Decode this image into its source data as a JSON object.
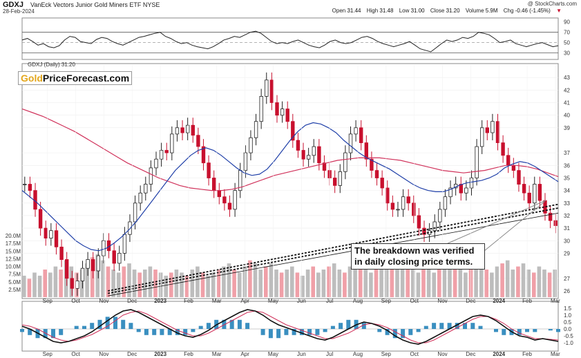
{
  "header": {
    "symbol": "GDXJ",
    "name": "VanEck Vectors Junior Gold Miners ETF  NYSE",
    "date": "28-Feb-2024",
    "copyright": "@ StockCharts.com",
    "open_label": "Open",
    "open": "31.44",
    "high_label": "High",
    "high": "31.48",
    "low_label": "Low",
    "low": "31.00",
    "close_label": "Close",
    "close": "31.20",
    "volume_label": "Volume",
    "volume": "5.9M",
    "chg_label": "Chg",
    "chg": "-0.46 (-1.45%)",
    "chg_marker": "▼"
  },
  "price_title": "GDXJ (Daily) 31.20",
  "logo": {
    "gold": "Gold",
    "rest": "PriceForecast.com"
  },
  "annotation": {
    "line1": "The breakdown was verified",
    "line2": "in daily closing price terms."
  },
  "colors": {
    "up": "#222222",
    "down": "#c8102e",
    "ma50": "#1f3fa8",
    "ma200": "#d0315a",
    "volume": "#bdbdbd",
    "volume_down": "#f0a0a8",
    "macd_hist": "#3a8fc0",
    "rsi": "#222222"
  },
  "chart_data": [
    {
      "type": "line",
      "name": "RSI",
      "y_ticks": [
        90,
        70,
        50,
        30
      ],
      "ylim": [
        20,
        95
      ],
      "values": [
        55,
        58,
        52,
        45,
        48,
        42,
        40,
        44,
        55,
        62,
        60,
        52,
        50,
        48,
        56,
        60,
        58,
        52,
        48,
        45,
        50,
        55,
        60,
        62,
        65,
        68,
        70,
        62,
        58,
        52,
        48,
        50,
        45,
        42,
        40,
        38,
        42,
        48,
        55,
        58,
        62,
        60,
        65,
        70,
        72,
        68,
        60,
        52,
        48,
        50,
        48,
        52,
        55,
        50,
        45,
        42,
        40,
        45,
        52,
        55,
        50,
        48,
        50,
        55,
        60,
        62,
        58,
        52,
        48,
        45,
        42,
        45,
        48,
        52,
        45,
        38,
        35,
        32,
        40,
        48,
        55,
        52,
        55,
        60,
        58,
        62,
        70,
        68,
        65,
        58,
        50,
        52,
        55,
        48,
        45,
        42,
        45,
        48,
        50,
        46,
        42,
        44
      ]
    },
    {
      "type": "line",
      "name": "GDXJ (Daily)",
      "x_ticks": [
        "Sep",
        "Oct",
        "Nov",
        "Dec",
        "2023",
        "Feb",
        "Mar",
        "Apr",
        "May",
        "Jun",
        "Jul",
        "Aug",
        "Sep",
        "Oct",
        "Nov",
        "Dec",
        "2024",
        "Feb",
        "Mar"
      ],
      "y_ticks": [
        43,
        42,
        41,
        40,
        39,
        37,
        36,
        35,
        34,
        33,
        32,
        31,
        30,
        29,
        27,
        26
      ],
      "ylim": [
        25.5,
        44
      ],
      "closes": [
        34.5,
        34.0,
        32.5,
        31.0,
        30.2,
        30.8,
        29.5,
        28.5,
        27.0,
        26.2,
        26.8,
        27.8,
        28.5,
        27.6,
        28.8,
        30.0,
        29.2,
        28.2,
        29.0,
        30.5,
        31.5,
        33.0,
        33.8,
        34.5,
        35.8,
        36.5,
        37.2,
        37.0,
        38.5,
        39.0,
        38.6,
        39.2,
        38.4,
        37.5,
        36.2,
        35.0,
        34.0,
        33.5,
        33.0,
        32.5,
        34.0,
        35.6,
        37.0,
        38.2,
        39.5,
        41.5,
        42.8,
        41.0,
        40.0,
        40.5,
        39.5,
        38.0,
        37.2,
        36.5,
        36.8,
        37.5,
        36.2,
        35.6,
        35.0,
        34.4,
        35.5,
        37.0,
        38.5,
        39.0,
        37.8,
        36.5,
        35.6,
        35.0,
        34.2,
        33.0,
        32.5,
        32.5,
        33.5,
        33.0,
        32.0,
        31.0,
        30.5,
        30.8,
        31.5,
        32.5,
        33.5,
        34.2,
        34.5,
        33.8,
        34.2,
        35.0,
        37.5,
        39.0,
        38.6,
        39.5,
        37.8,
        36.8,
        36.0,
        35.6,
        34.5,
        33.8,
        33.0,
        34.5,
        33.2,
        32.2,
        31.6,
        31.2
      ],
      "ma50": [
        34.0,
        33.5,
        33.0,
        32.4,
        31.8,
        31.2,
        30.6,
        30.0,
        29.6,
        29.3,
        29.2,
        29.4,
        29.8,
        30.3,
        30.9,
        31.6,
        32.4,
        33.2,
        34.0,
        34.8,
        35.6,
        36.2,
        36.8,
        37.2,
        37.4,
        37.2,
        36.8,
        36.3,
        35.8,
        35.4,
        35.2,
        35.3,
        35.7,
        36.4,
        37.2,
        38.0,
        38.7,
        39.2,
        39.4,
        39.3,
        39.0,
        38.6,
        38.0,
        37.5,
        37.0,
        36.6,
        36.3,
        36.0,
        35.7,
        35.3,
        34.9,
        34.5,
        34.2,
        34.0,
        33.9,
        33.9,
        34.1,
        34.4,
        34.6,
        34.7,
        34.8,
        35.0,
        35.3,
        35.8,
        36.1,
        36.3,
        36.2,
        35.9,
        35.5,
        35.1,
        34.7
      ],
      "ma200": [
        40.5,
        40.2,
        39.9,
        39.5,
        39.1,
        38.7,
        38.2,
        37.7,
        37.2,
        36.7,
        36.2,
        35.8,
        35.4,
        35.0,
        34.7,
        34.4,
        34.2,
        34.1,
        34.0,
        34.0,
        34.1,
        34.3,
        34.6,
        34.9,
        35.2,
        35.4,
        35.6,
        35.8,
        36.0,
        36.2,
        36.4,
        36.5,
        36.6,
        36.6,
        36.6,
        36.5,
        36.4,
        36.2,
        36.0,
        35.8,
        35.6,
        35.5,
        35.4,
        35.5,
        35.6,
        35.8,
        36.0,
        36.0,
        35.9,
        35.7,
        35.4,
        35.1
      ],
      "trendlines": [
        {
          "from": [
            0.16,
            26.0
          ],
          "to": [
            1.0,
            32.9
          ],
          "style": "dotted"
        },
        {
          "from": [
            0.16,
            25.8
          ],
          "to": [
            1.0,
            32.6
          ],
          "style": "dotted"
        },
        {
          "from": [
            0.16,
            25.6
          ],
          "to": [
            1.0,
            32.2
          ],
          "style": "thin"
        }
      ]
    },
    {
      "type": "bar",
      "name": "Volume",
      "y_ticks": [
        "20.0M",
        "17.5M",
        "15.0M",
        "12.5M",
        "10.0M",
        "7.5M",
        "5.0M",
        "2.5M"
      ],
      "ylim": [
        0,
        22.5
      ],
      "values": [
        7,
        6,
        8,
        7,
        9,
        8,
        10,
        9,
        12,
        10,
        8,
        9,
        11,
        13,
        14,
        12,
        10,
        9,
        8,
        10,
        11,
        9,
        8,
        9,
        10,
        9,
        8,
        7,
        8,
        9,
        8,
        7,
        9,
        10,
        8,
        7,
        8,
        9,
        10,
        11,
        9,
        8,
        10,
        12,
        11,
        9,
        10,
        11,
        9,
        8,
        9,
        10,
        8,
        7,
        9,
        10,
        8,
        9,
        10,
        11,
        9,
        8,
        10,
        12,
        11,
        9,
        8,
        9,
        10,
        12,
        14,
        13,
        11,
        10,
        9,
        8,
        9,
        10,
        8,
        9,
        10,
        12,
        11,
        9,
        8,
        9,
        10,
        11,
        9,
        8,
        10,
        11,
        12,
        9,
        10,
        11,
        9,
        8,
        10,
        9,
        8,
        9
      ]
    },
    {
      "type": "line",
      "name": "MACD",
      "y_ticks": [
        "1.5",
        "1.0",
        "0.5",
        "0.0",
        "-0.5",
        "-1.0"
      ],
      "ylim": [
        -1.4,
        1.7
      ],
      "macd": [
        0.2,
        0.0,
        -0.3,
        -0.6,
        -0.9,
        -1.0,
        -0.9,
        -0.7,
        -0.5,
        -0.2,
        0.2,
        0.6,
        1.0,
        1.3,
        1.4,
        1.2,
        0.9,
        0.6,
        0.3,
        0.0,
        -0.3,
        -0.5,
        -0.6,
        -0.4,
        -0.1,
        0.3,
        0.6,
        0.9,
        1.2,
        1.4,
        1.3,
        1.0,
        0.6,
        0.3,
        0.1,
        -0.1,
        -0.3,
        -0.5,
        -0.7,
        -0.8,
        -0.6,
        -0.3,
        0.0,
        0.3,
        0.5,
        0.4,
        0.2,
        -0.1,
        -0.5,
        -0.8,
        -1.0,
        -1.1,
        -0.9,
        -0.6,
        -0.3,
        0.0,
        0.3,
        0.6,
        0.9,
        1.0,
        0.9,
        0.6,
        0.2,
        -0.2,
        -0.5,
        -0.6,
        -0.8,
        -0.7,
        -0.8,
        -0.9
      ],
      "signal": [
        0.3,
        0.2,
        0.0,
        -0.3,
        -0.6,
        -0.8,
        -0.9,
        -0.8,
        -0.6,
        -0.4,
        -0.1,
        0.2,
        0.6,
        1.0,
        1.2,
        1.3,
        1.1,
        0.8,
        0.5,
        0.2,
        -0.1,
        -0.3,
        -0.5,
        -0.5,
        -0.3,
        0.0,
        0.3,
        0.6,
        0.9,
        1.2,
        1.3,
        1.2,
        0.9,
        0.6,
        0.3,
        0.1,
        -0.1,
        -0.3,
        -0.5,
        -0.7,
        -0.7,
        -0.5,
        -0.3,
        0.0,
        0.3,
        0.4,
        0.3,
        0.1,
        -0.2,
        -0.5,
        -0.8,
        -1.0,
        -1.0,
        -0.8,
        -0.5,
        -0.2,
        0.1,
        0.4,
        0.7,
        0.9,
        0.9,
        0.7,
        0.4,
        0.0,
        -0.3,
        -0.5,
        -0.7,
        -0.7,
        -0.75,
        -0.8
      ]
    }
  ]
}
